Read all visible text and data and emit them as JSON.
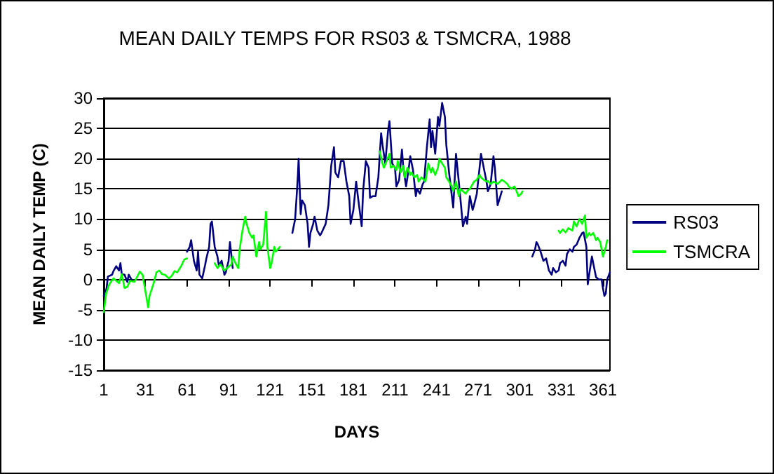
{
  "chart_data": {
    "type": "line",
    "title": "MEAN DAILY TEMPS FOR RS03 & TSMCRA, 1988",
    "xlabel": "DAYS",
    "ylabel": "MEAN DAILY TEMP (C)",
    "xlim": [
      1,
      366
    ],
    "xticks": [
      1,
      31,
      61,
      91,
      121,
      151,
      181,
      211,
      241,
      271,
      301,
      331,
      361
    ],
    "ylim": [
      -15,
      30
    ],
    "yticks": [
      -15,
      -10,
      -5,
      0,
      5,
      10,
      15,
      20,
      25,
      30
    ],
    "grid": "y",
    "legend": "right",
    "marker": "none",
    "line_style": "solid",
    "series": [
      {
        "name": "RS03",
        "color": "#000080",
        "x": [
          1,
          3,
          4,
          7,
          8,
          10,
          12,
          13,
          14,
          16,
          18,
          19,
          21,
          22,
          61,
          63,
          64,
          66,
          68,
          69,
          70,
          72,
          74,
          75,
          77,
          78,
          79,
          81,
          83,
          84,
          86,
          88,
          89,
          91,
          92,
          94,
          95,
          137,
          139,
          140,
          141,
          141.5,
          142,
          143,
          144,
          146,
          148,
          149,
          150,
          152,
          153,
          155,
          157,
          158,
          161,
          163,
          165,
          167,
          168,
          170,
          172,
          174,
          176,
          178,
          179,
          181,
          183,
          184,
          187,
          188,
          190,
          192,
          193,
          195,
          197,
          199,
          201,
          202,
          204,
          206,
          207,
          209,
          211,
          212,
          214,
          216,
          217,
          219,
          221,
          222,
          224,
          226,
          227,
          229,
          231,
          232,
          234,
          236,
          237,
          238,
          240,
          242,
          243,
          245,
          247,
          248,
          250,
          252,
          253,
          255,
          257,
          258,
          260,
          262,
          263,
          265,
          267,
          268,
          270,
          272,
          273,
          275,
          277,
          278,
          280,
          282,
          283,
          285,
          287,
          288,
          289,
          309,
          310,
          312,
          313,
          314,
          316,
          318,
          320,
          322,
          324,
          325,
          327,
          329,
          330,
          332,
          334,
          335,
          337,
          339,
          340,
          342,
          344,
          346,
          347,
          349,
          350,
          351,
          353,
          355,
          356,
          358,
          360,
          361,
          362,
          363,
          364,
          366
        ],
        "values": [
          -2.7,
          -1.5,
          0.5,
          0.8,
          1.4,
          2.2,
          1.5,
          2.7,
          0.9,
          0.8,
          -0.4,
          0.8,
          0,
          null,
          4.6,
          5.4,
          6.5,
          3.1,
          1.5,
          4.6,
          0.8,
          0.2,
          2.3,
          3.5,
          5.4,
          9.2,
          9.6,
          5.4,
          3.8,
          2.3,
          3.1,
          0.8,
          1.2,
          3.1,
          6.2,
          1.9,
          null,
          7.7,
          10,
          13.5,
          17.3,
          20,
          16.9,
          10.8,
          13.1,
          12.3,
          9.2,
          5.4,
          7.7,
          9.2,
          10.4,
          8.1,
          7.3,
          7.7,
          9.2,
          12.3,
          18.8,
          21.9,
          17.7,
          16.9,
          19.6,
          19.6,
          16.2,
          13.8,
          9.2,
          11.5,
          16.2,
          14.2,
          8.8,
          14.6,
          19.6,
          18.5,
          13.5,
          13.8,
          13.8,
          16.9,
          24.2,
          22.3,
          19.2,
          24.6,
          26.2,
          19.2,
          18.5,
          15.4,
          16.5,
          21.5,
          18.5,
          15.4,
          18.5,
          20.4,
          18.1,
          13.8,
          15,
          14.2,
          15.8,
          16.2,
          21.9,
          26.5,
          21.9,
          24.6,
          20.8,
          26.9,
          25.4,
          29.2,
          26.9,
          22.3,
          17.7,
          13.8,
          11.9,
          20.8,
          16.2,
          13.8,
          8.8,
          10.4,
          9.2,
          13.8,
          11.5,
          12.3,
          14.2,
          18.5,
          20.8,
          18.5,
          16.2,
          14.6,
          15.8,
          20.4,
          18.5,
          12.3,
          13.8,
          14.6,
          null,
          null,
          3.8,
          5,
          6.2,
          5.8,
          4.6,
          3.1,
          3.5,
          1.5,
          0.8,
          1.9,
          1.2,
          1.5,
          2.7,
          3.1,
          2.3,
          4.2,
          5,
          4.6,
          5.4,
          5.8,
          6.9,
          7.7,
          7.8,
          5.4,
          -0.8,
          0.8,
          3.8,
          1.5,
          0.4,
          0,
          0,
          -1.5,
          -2.7,
          -2.3,
          0,
          1.2
        ]
      },
      {
        "name": "TSMCRA",
        "color": "#00ff00",
        "x": [
          1,
          2.7,
          5,
          8,
          12,
          14,
          16,
          18,
          20,
          23,
          25,
          27,
          29,
          31,
          33,
          34,
          37,
          39,
          41,
          43,
          45,
          48,
          50,
          52,
          54,
          57,
          59,
          61,
          62,
          81,
          83,
          85,
          88,
          90,
          93,
          94,
          96,
          98,
          99,
          101,
          103,
          104,
          106,
          108,
          109,
          111,
          113,
          114,
          116,
          118,
          119,
          121,
          122,
          124,
          125,
          128,
          129,
          200,
          202,
          203,
          205,
          207,
          208,
          210,
          212,
          213,
          215,
          217,
          218,
          220,
          222,
          223,
          225,
          227,
          228,
          230,
          232,
          233,
          235,
          237,
          238,
          240,
          242,
          243,
          245,
          247,
          248,
          250,
          252,
          253,
          255,
          257,
          258,
          260,
          262,
          263,
          265,
          267,
          268,
          270,
          272,
          273,
          275,
          277,
          278,
          280,
          282,
          285,
          288,
          290,
          292,
          293,
          295,
          297,
          298,
          300,
          302,
          303,
          304,
          329,
          330,
          332,
          334,
          336,
          339,
          340,
          342,
          344,
          346,
          348,
          349,
          351,
          352,
          354,
          356,
          357,
          359,
          361,
          363,
          364
        ],
        "values": [
          -5.4,
          -2.3,
          -0.8,
          0.2,
          -0.6,
          0.9,
          -1.4,
          -1.2,
          -0.2,
          -0.4,
          0.4,
          1.3,
          0.8,
          -1.9,
          -4.6,
          -2.7,
          -0.6,
          1.2,
          1.5,
          0.9,
          0.8,
          0.2,
          0.6,
          1.4,
          1.2,
          2.3,
          3.3,
          3.5,
          null,
          2.7,
          1.9,
          2.5,
          1.5,
          1.9,
          2.5,
          3.8,
          2.7,
          1.9,
          5,
          8.1,
          10.4,
          9.2,
          7.7,
          6.9,
          7.3,
          3.8,
          6.2,
          5,
          5.8,
          11.2,
          5.4,
          1.9,
          2.7,
          5.4,
          4.6,
          5.4,
          null,
          21.2,
          19.2,
          18.5,
          19.6,
          20.8,
          18.5,
          18.8,
          18.1,
          19.6,
          17.7,
          18.8,
          16.9,
          18.5,
          17.3,
          17.7,
          16.9,
          17.3,
          16.2,
          16.9,
          16.5,
          16.2,
          19.2,
          17.7,
          18.5,
          17.3,
          18.5,
          20,
          19.2,
          18.5,
          16.9,
          16.2,
          15.4,
          14.6,
          16.2,
          13.8,
          15,
          14.6,
          14.2,
          14.6,
          15,
          15.8,
          16.2,
          16.5,
          17.3,
          16.9,
          16.5,
          16.2,
          16.3,
          15.8,
          16.2,
          15.8,
          16.5,
          16.2,
          15.8,
          15.4,
          15,
          15.4,
          15,
          13.8,
          14.2,
          14.6,
          null,
          8.1,
          7.7,
          8.3,
          7.8,
          8.5,
          8.1,
          9.6,
          8.8,
          10,
          9.2,
          10.6,
          6.9,
          7.7,
          7.3,
          7.7,
          6.5,
          6.9,
          6.2,
          3.8,
          5.4,
          6.5
        ]
      }
    ]
  }
}
